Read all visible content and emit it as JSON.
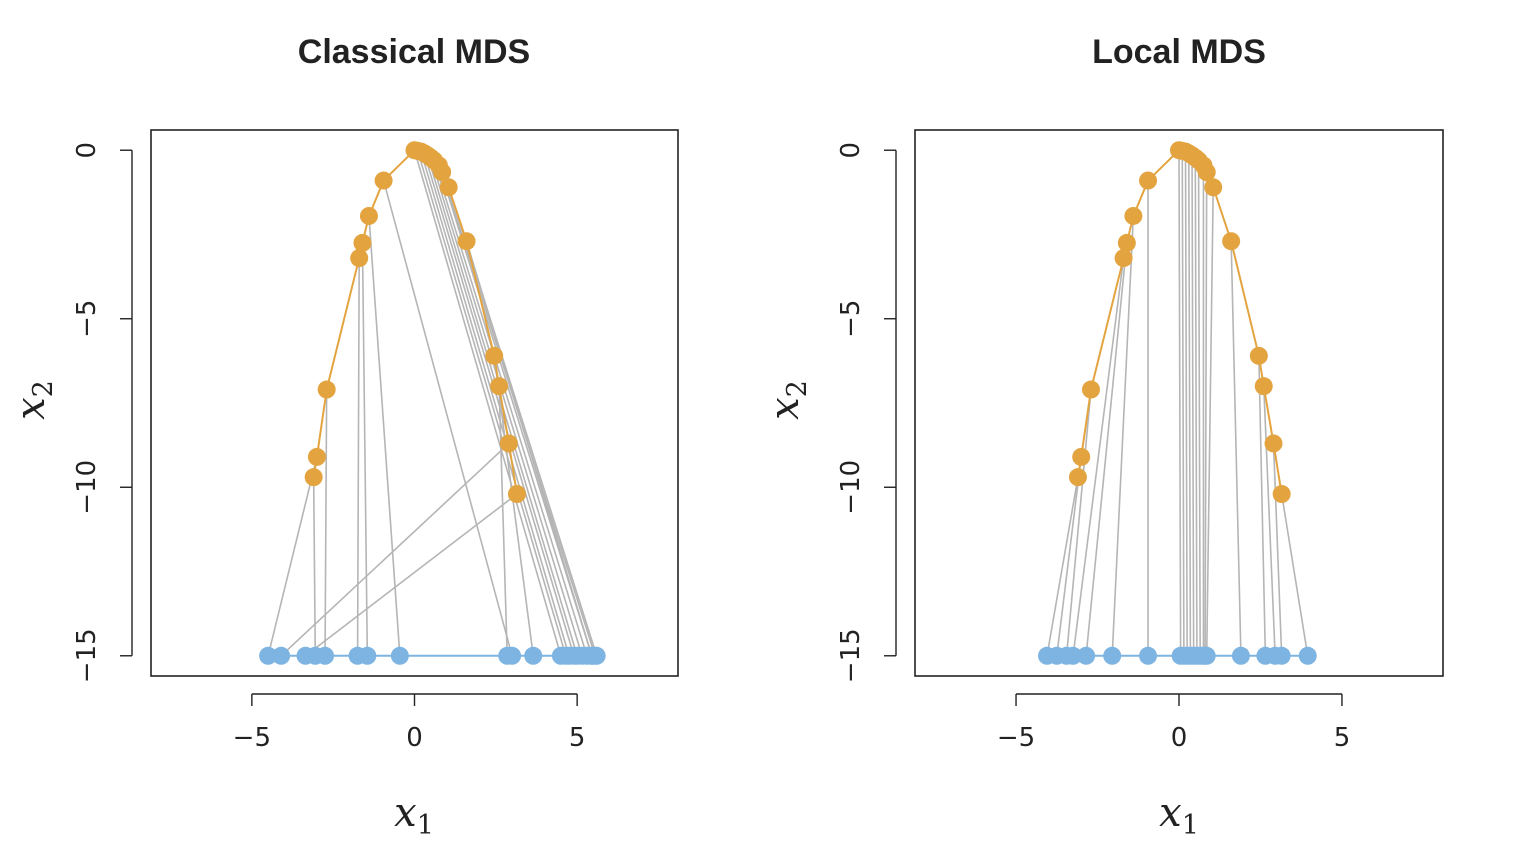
{
  "colors": {
    "curve": "#E3A440",
    "line": "#7DB4E1",
    "connector": "#B5B5B5",
    "frame": "#222222"
  },
  "chart_data": [
    {
      "type": "scatter",
      "title": "Classical MDS",
      "xlabel": "x",
      "xlabel_sub": "1",
      "ylabel": "x",
      "ylabel_sub": "2",
      "xlim": [
        -8.1,
        8.1
      ],
      "ylim": [
        -15.6,
        0.6
      ],
      "xticks": [
        -5,
        0,
        5
      ],
      "yticks": [
        0,
        -5,
        -10,
        -15
      ],
      "xtick_labels": [
        "−5",
        "0",
        "5"
      ],
      "ytick_labels": [
        "0",
        "−5",
        "−10",
        "−15"
      ],
      "series": [
        {
          "role": "curve",
          "x": [
            -3.1,
            -3.0,
            -2.7,
            -1.7,
            -1.6,
            -1.4,
            -0.95,
            0.0,
            0.1,
            0.2,
            0.3,
            0.4,
            0.5,
            0.6,
            0.75,
            0.85,
            1.05,
            1.6,
            2.45,
            2.6,
            2.9,
            3.15
          ],
          "y": [
            -9.7,
            -9.1,
            -7.1,
            -3.2,
            -2.75,
            -1.95,
            -0.9,
            0.0,
            -0.02,
            -0.04,
            -0.09,
            -0.15,
            -0.22,
            -0.3,
            -0.45,
            -0.65,
            -1.1,
            -2.7,
            -6.1,
            -7.0,
            -8.7,
            -10.2
          ]
        },
        {
          "role": "line",
          "x": [
            -3.05,
            -4.5,
            -2.75,
            -1.75,
            -1.45,
            -0.45,
            3.0,
            4.5,
            4.65,
            4.75,
            4.9,
            5.0,
            5.15,
            5.3,
            5.45,
            5.55,
            5.6,
            5.45,
            3.65,
            2.85,
            -4.1,
            -3.35
          ],
          "y": [
            -15,
            -15,
            -15,
            -15,
            -15,
            -15,
            -15,
            -15,
            -15,
            -15,
            -15,
            -15,
            -15,
            -15,
            -15,
            -15,
            -15,
            -15,
            -15,
            -15,
            -15,
            -15
          ]
        }
      ]
    },
    {
      "type": "scatter",
      "title": "Local MDS",
      "xlabel": "x",
      "xlabel_sub": "1",
      "ylabel": "x",
      "ylabel_sub": "2",
      "xlim": [
        -8.1,
        8.1
      ],
      "ylim": [
        -15.6,
        0.6
      ],
      "xticks": [
        -5,
        0,
        5
      ],
      "yticks": [
        0,
        -5,
        -10,
        -15
      ],
      "xtick_labels": [
        "−5",
        "0",
        "5"
      ],
      "ytick_labels": [
        "0",
        "−5",
        "−10",
        "−15"
      ],
      "series": [
        {
          "role": "curve",
          "x": [
            -3.1,
            -3.0,
            -2.7,
            -1.7,
            -1.6,
            -1.4,
            -0.95,
            0.0,
            0.1,
            0.2,
            0.3,
            0.4,
            0.5,
            0.6,
            0.75,
            0.85,
            1.05,
            1.6,
            2.45,
            2.6,
            2.9,
            3.15
          ],
          "y": [
            -9.7,
            -9.1,
            -7.1,
            -3.2,
            -2.75,
            -1.95,
            -0.9,
            0.0,
            -0.02,
            -0.04,
            -0.09,
            -0.15,
            -0.22,
            -0.3,
            -0.45,
            -0.65,
            -1.1,
            -2.7,
            -6.1,
            -7.0,
            -8.7,
            -10.2
          ]
        },
        {
          "role": "line",
          "x": [
            -4.05,
            -3.75,
            -3.45,
            -3.25,
            -2.85,
            -2.05,
            -0.95,
            0.05,
            0.15,
            0.25,
            0.35,
            0.45,
            0.55,
            0.65,
            0.75,
            0.8,
            0.85,
            1.9,
            2.65,
            2.95,
            3.15,
            3.95
          ],
          "y": [
            -15,
            -15,
            -15,
            -15,
            -15,
            -15,
            -15,
            -15,
            -15,
            -15,
            -15,
            -15,
            -15,
            -15,
            -15,
            -15,
            -15,
            -15,
            -15,
            -15,
            -15,
            -15
          ]
        }
      ]
    }
  ]
}
